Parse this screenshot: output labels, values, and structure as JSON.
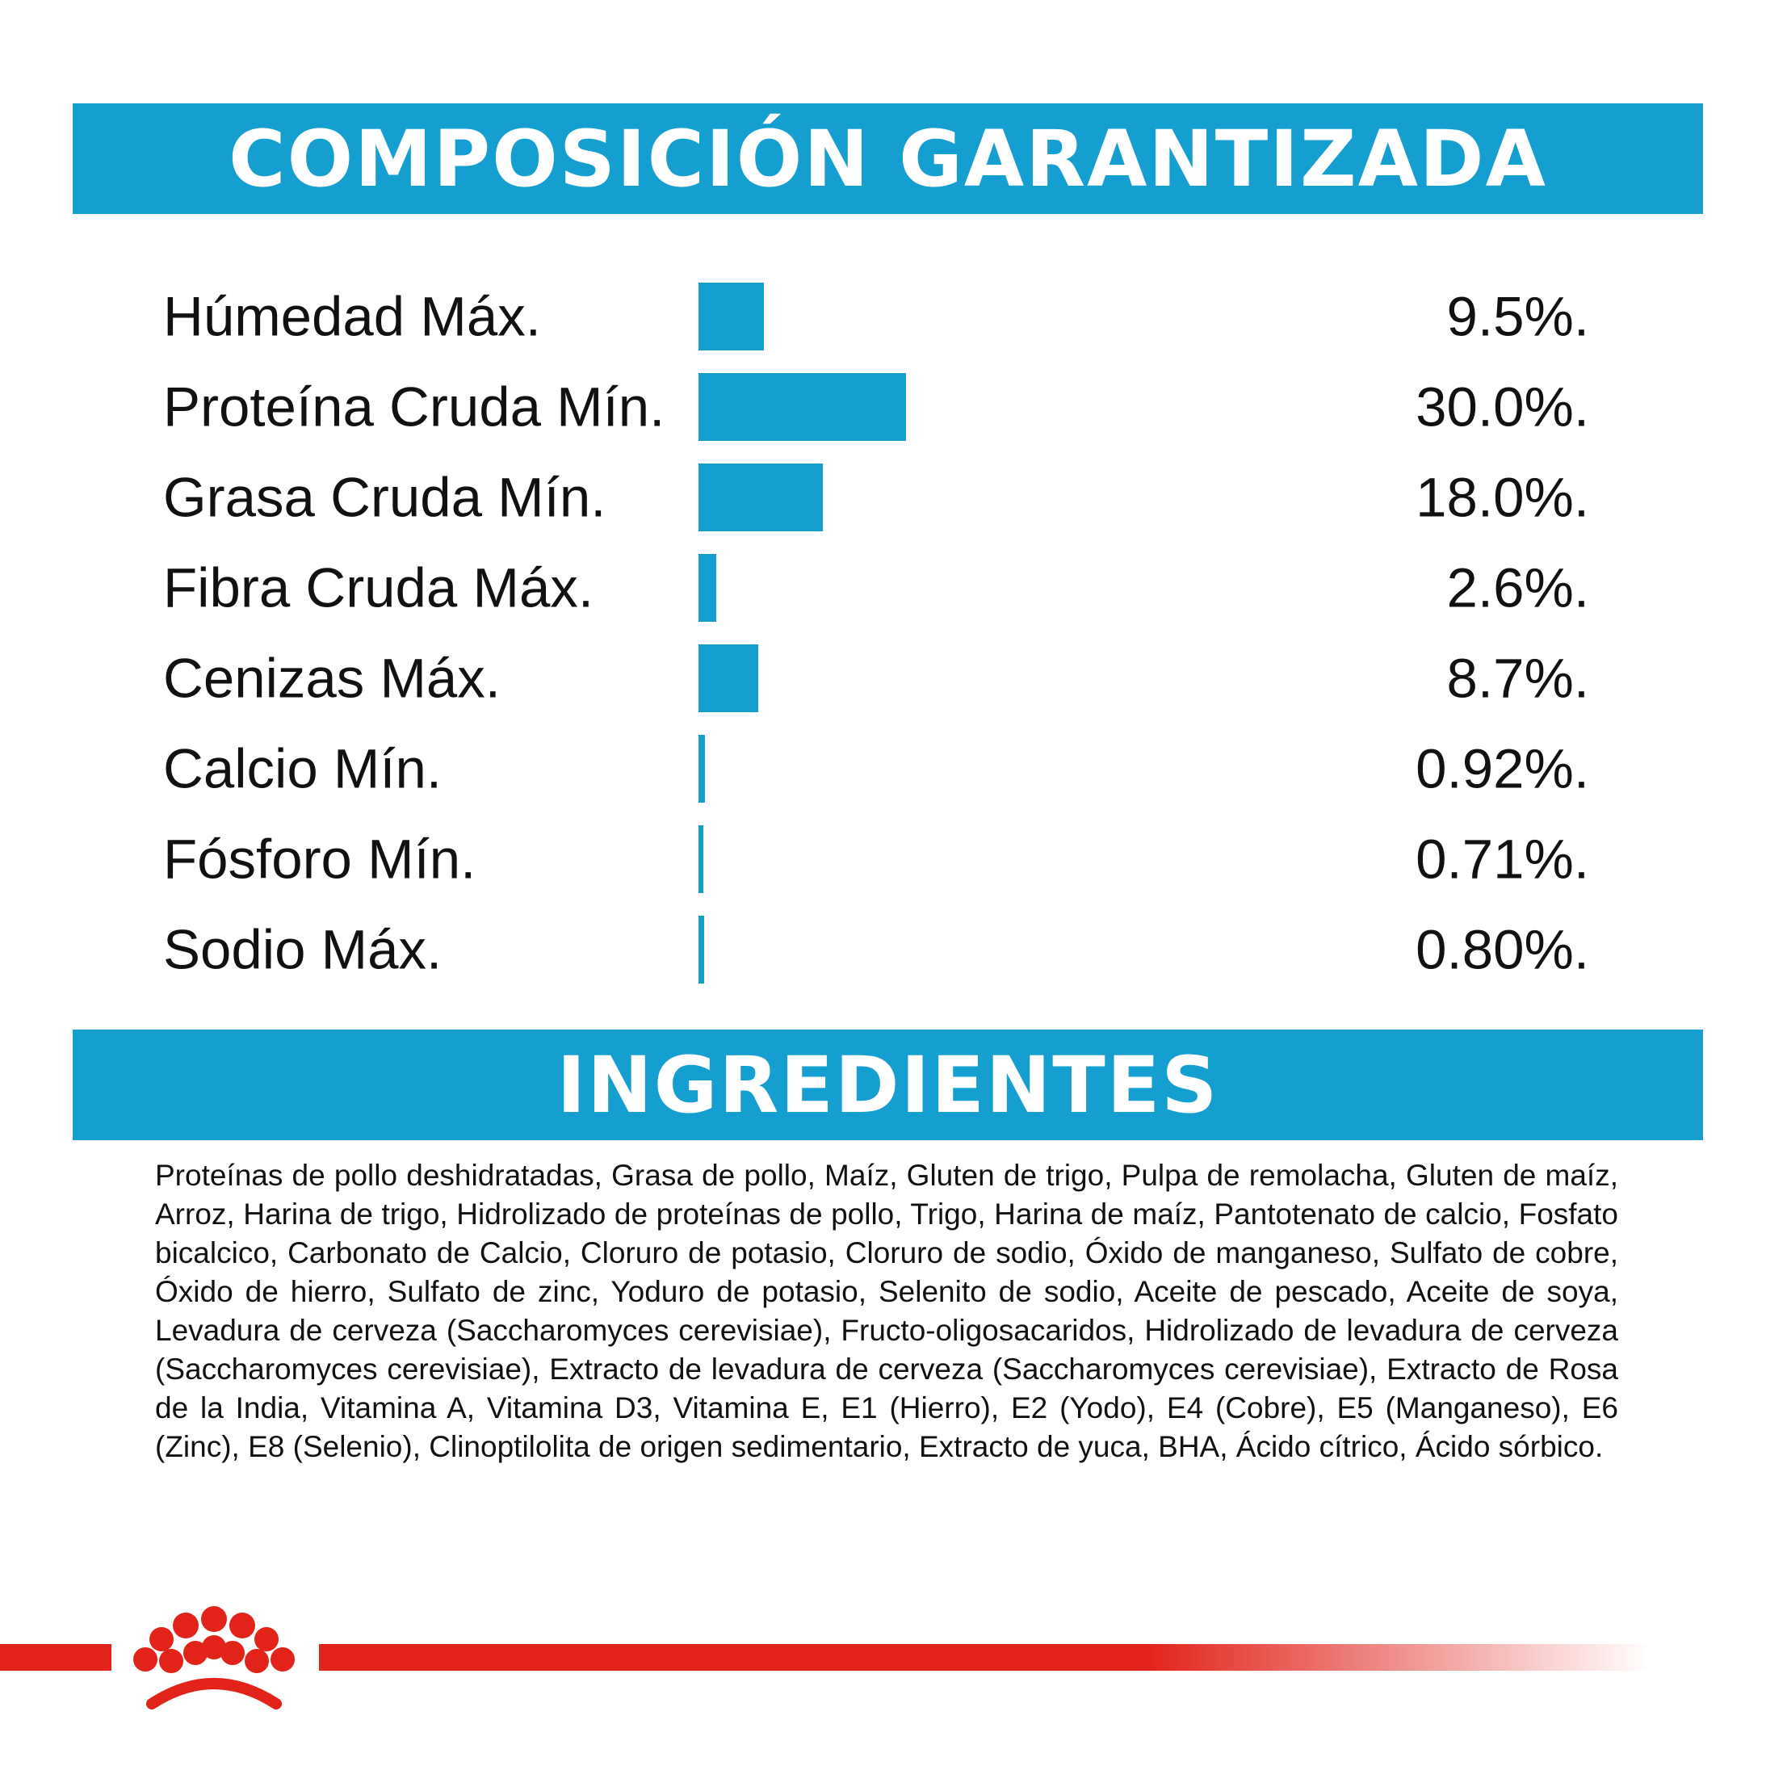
{
  "colors": {
    "accent": "#159fd0",
    "bar": "#159fd0",
    "brand_red": "#e1231a",
    "text": "#111111"
  },
  "composition": {
    "title": "COMPOSICIÓN GARANTIZADA"
  },
  "chart_data": {
    "type": "bar",
    "orientation": "horizontal",
    "title": "COMPOSICIÓN GARANTIZADA",
    "categories": [
      "Húmedad Máx.",
      "Proteína Cruda Mín.",
      "Grasa Cruda Mín.",
      "Fibra Cruda Máx.",
      "Cenizas Máx.",
      "Calcio Mín.",
      "Fósforo Mín.",
      "Sodio Máx."
    ],
    "values": [
      9.5,
      30.0,
      18.0,
      2.6,
      8.7,
      0.92,
      0.71,
      0.8
    ],
    "value_labels": [
      "9.5%.",
      "30.0%.",
      "18.0%.",
      "2.6%.",
      "8.7%.",
      "0.92%.",
      "0.71%.",
      "0.80%."
    ],
    "xlabel": "",
    "ylabel": "",
    "grid": false,
    "legend": "none"
  },
  "ingredients": {
    "title": "INGREDIENTES",
    "text": "Proteínas de pollo deshidratadas, Grasa de pollo, Maíz, Gluten de trigo, Pulpa de remolacha, Gluten de maíz, Arroz, Harina de trigo, Hidrolizado de proteínas de pollo, Trigo, Harina de maíz, Pantotenato de calcio, Fosfato bicalcico, Carbonato de Calcio, Cloruro de potasio, Cloruro de sodio, Óxido de manganeso, Sulfato de cobre, Óxido de hierro, Sulfato de zinc, Yoduro de potasio, Selenito de sodio, Aceite de pescado, Aceite de soya, Levadura de cerveza (Saccharomyces cerevisiae), Fructo-oligosacaridos, Hidrolizado de levadura de cerveza (Saccharomyces cerevisiae), Extracto de levadura de cerveza (Saccharomyces cerevisiae), Extracto de Rosa de la India, Vitamina A, Vitamina D3, Vitamina E, E1 (Hierro), E2 (Yodo), E4 (Cobre), E5 (Manganeso), E6 (Zinc), E8 (Selenio), Clinoptilolita de origen sedimentario, Extracto de yuca, BHA, Ácido cítrico, Ácido sórbico."
  },
  "footer": {
    "logo_icon": "crown-logo-icon"
  }
}
